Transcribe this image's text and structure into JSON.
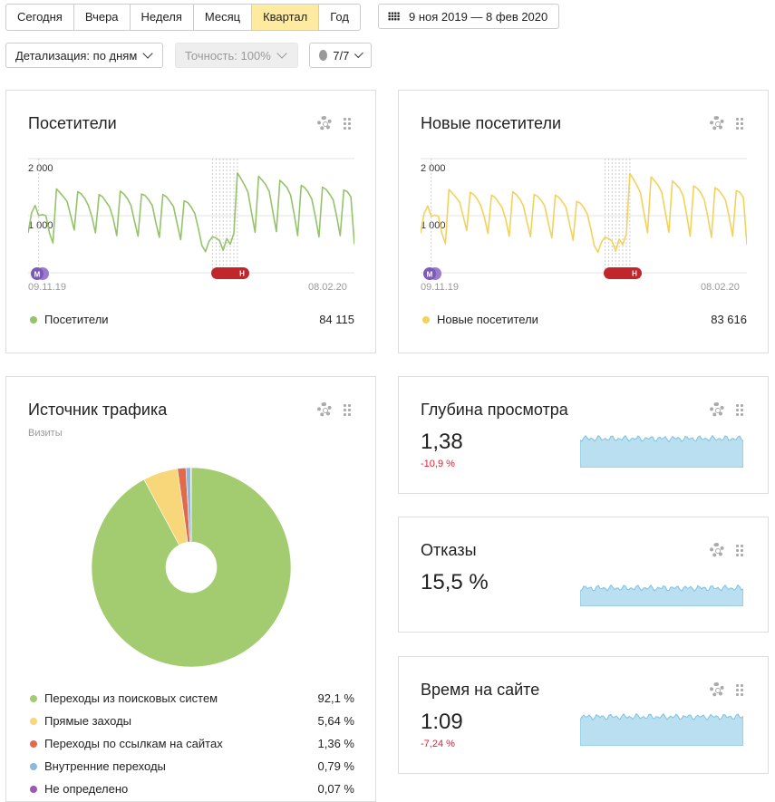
{
  "toolbar": {
    "periods": [
      "Сегодня",
      "Вчера",
      "Неделя",
      "Месяц",
      "Квартал",
      "Год"
    ],
    "active_period": "Квартал",
    "date_range": "9 ноя 2019 — 8 фев 2020",
    "detail": "Детализация: по дням",
    "accuracy": "Точность: 100%",
    "notes": "7/7"
  },
  "visitors": {
    "title": "Посетители",
    "y_tick_high": "2 000",
    "y_tick_low": "1 000",
    "date_start": "09.11.19",
    "date_end": "08.02.20",
    "legend": "Посетители",
    "total": "84 115",
    "marker_m": "М",
    "marker_h": "Н",
    "color": "#94c46a"
  },
  "new_visitors": {
    "title": "Новые посетители",
    "y_tick_high": "2 000",
    "y_tick_low": "1 000",
    "date_start": "09.11.19",
    "date_end": "08.02.20",
    "legend": "Новые посетители",
    "total": "83 616",
    "marker_m": "М",
    "marker_h": "Н",
    "color": "#f2d25c"
  },
  "traffic": {
    "title": "Источник трафика",
    "subtitle": "Визиты",
    "items": [
      {
        "label": "Переходы из поисковых систем",
        "value": "92,1 %",
        "color": "#a3cb70"
      },
      {
        "label": "Прямые заходы",
        "value": "5,64 %",
        "color": "#f8d77b"
      },
      {
        "label": "Переходы по ссылкам на сайтах",
        "value": "1,36 %",
        "color": "#e06a4c"
      },
      {
        "label": "Внутренние переходы",
        "value": "0,79 %",
        "color": "#8db7dc"
      },
      {
        "label": "Не определено",
        "value": "0,07 %",
        "color": "#9b59b6"
      }
    ]
  },
  "depth": {
    "title": "Глубина просмотра",
    "value": "1,38",
    "change": "-10,9 %"
  },
  "bounce": {
    "title": "Отказы",
    "value": "15,5 %"
  },
  "time": {
    "title": "Время на сайте",
    "value": "1:09",
    "change": "-7,24 %"
  },
  "chart_data": [
    {
      "type": "line",
      "title": "Посетители",
      "series": [
        {
          "name": "Посетители",
          "values": [
            700,
            1050,
            1180,
            1000,
            1020,
            1000,
            700,
            520,
            1470,
            1400,
            1330,
            1250,
            1000,
            750,
            1420,
            1380,
            1300,
            1180,
            980,
            700,
            1370,
            1330,
            1240,
            1150,
            950,
            650,
            1430,
            1380,
            1300,
            1180,
            900,
            640,
            1380,
            1350,
            1280,
            1180,
            880,
            620,
            1370,
            1330,
            1250,
            1160,
            870,
            580,
            1260,
            1230,
            1150,
            1040,
            780,
            480,
            370,
            550,
            630,
            610,
            560,
            390,
            600,
            500,
            690,
            1750,
            1650,
            1540,
            1410,
            1050,
            710,
            1690,
            1620,
            1540,
            1420,
            1070,
            720,
            1620,
            1560,
            1490,
            1360,
            1030,
            650,
            1530,
            1490,
            1410,
            1290,
            980,
            630,
            1500,
            1460,
            1380,
            1280,
            990,
            650,
            1450,
            1420,
            1330,
            500
          ]
        }
      ],
      "ylim": [
        0,
        2000
      ]
    },
    {
      "type": "line",
      "title": "Новые посетители",
      "series": [
        {
          "name": "Новые посетители",
          "values": [
            690,
            1040,
            1170,
            990,
            1010,
            990,
            690,
            510,
            1460,
            1390,
            1320,
            1240,
            990,
            740,
            1410,
            1370,
            1290,
            1170,
            970,
            690,
            1360,
            1320,
            1230,
            1140,
            940,
            640,
            1420,
            1370,
            1290,
            1170,
            890,
            630,
            1370,
            1340,
            1270,
            1170,
            870,
            610,
            1360,
            1320,
            1240,
            1150,
            860,
            570,
            1250,
            1220,
            1140,
            1030,
            770,
            470,
            360,
            540,
            620,
            600,
            550,
            380,
            590,
            490,
            680,
            1740,
            1640,
            1530,
            1400,
            1040,
            700,
            1680,
            1610,
            1530,
            1410,
            1060,
            710,
            1610,
            1550,
            1480,
            1350,
            1020,
            640,
            1520,
            1480,
            1400,
            1280,
            970,
            620,
            1490,
            1450,
            1370,
            1270,
            980,
            640,
            1440,
            1410,
            1320,
            490
          ]
        }
      ],
      "ylim": [
        0,
        2000
      ]
    },
    {
      "type": "pie",
      "title": "Источник трафика",
      "categories": [
        "Переходы из поисковых систем",
        "Прямые заходы",
        "Переходы по ссылкам на сайтах",
        "Внутренние переходы",
        "Не определено"
      ],
      "values": [
        92.1,
        5.64,
        1.36,
        0.79,
        0.07
      ]
    }
  ]
}
